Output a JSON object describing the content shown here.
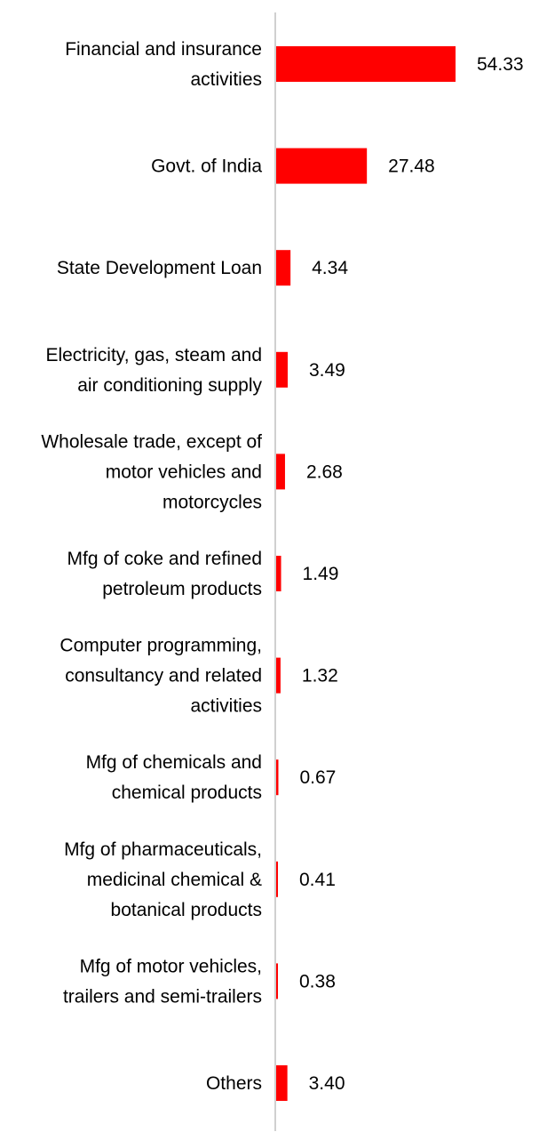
{
  "chart_data": {
    "type": "bar",
    "orientation": "horizontal",
    "categories": [
      [
        "Financial and insurance",
        "activities"
      ],
      [
        "Govt. of India"
      ],
      [
        "State Development Loan"
      ],
      [
        "Electricity, gas, steam and",
        "air conditioning supply"
      ],
      [
        "Wholesale trade, except of",
        "motor vehicles and",
        "motorcycles"
      ],
      [
        "Mfg of coke and refined",
        "petroleum products"
      ],
      [
        "Computer programming,",
        "consultancy and related",
        "activities"
      ],
      [
        "Mfg of chemicals and",
        "chemical products"
      ],
      [
        "Mfg of pharmaceuticals,",
        "medicinal chemical &",
        "botanical products"
      ],
      [
        "Mfg of motor vehicles,",
        "trailers and semi-trailers"
      ],
      [
        "Others"
      ]
    ],
    "values": [
      54.33,
      27.48,
      4.34,
      3.49,
      2.68,
      1.49,
      1.32,
      0.67,
      0.41,
      0.38,
      3.4
    ],
    "value_labels": [
      "54.33",
      "27.48",
      "4.34",
      "3.49",
      "2.68",
      "1.49",
      "1.32",
      "0.67",
      "0.41",
      "0.38",
      "3.40"
    ],
    "bar_color": "#ff0000",
    "axis_color": "#d0d0d0",
    "xlim": [
      0,
      54.33
    ],
    "grid": false,
    "legend": "none"
  }
}
